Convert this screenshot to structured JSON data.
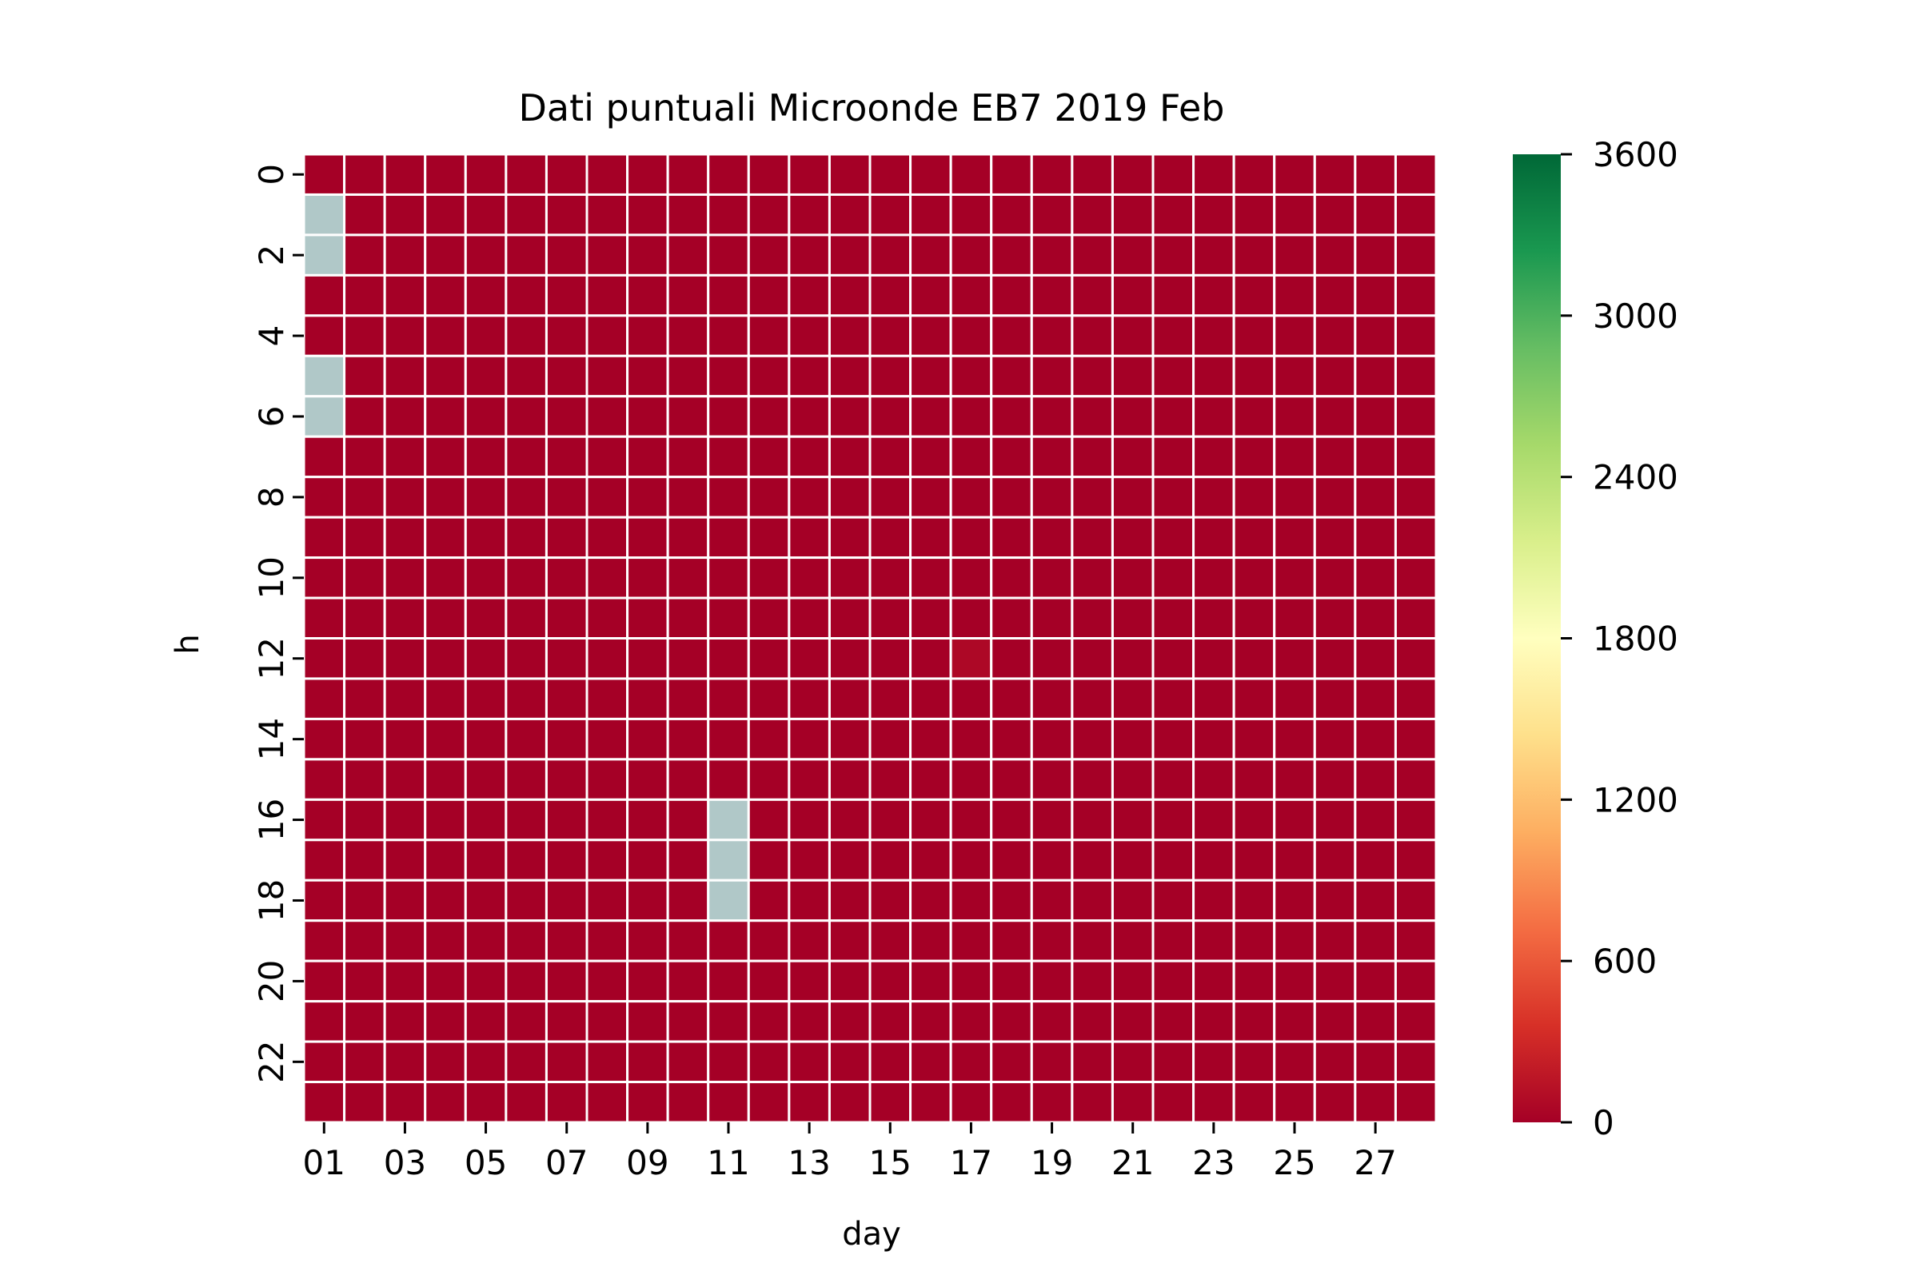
{
  "chart_data": {
    "type": "heatmap",
    "title": "Dati puntuali Microonde EB7 2019 Feb",
    "xlabel": "day",
    "ylabel": "h",
    "days": [
      "01",
      "02",
      "03",
      "04",
      "05",
      "06",
      "07",
      "08",
      "09",
      "10",
      "11",
      "12",
      "13",
      "14",
      "15",
      "16",
      "17",
      "18",
      "19",
      "20",
      "21",
      "22",
      "23",
      "24",
      "25",
      "26",
      "27",
      "28"
    ],
    "hours": [
      0,
      1,
      2,
      3,
      4,
      5,
      6,
      7,
      8,
      9,
      10,
      11,
      12,
      13,
      14,
      15,
      16,
      17,
      18,
      19,
      20,
      21,
      22,
      23
    ],
    "x_tick_labels": [
      "01",
      "03",
      "05",
      "07",
      "09",
      "11",
      "13",
      "15",
      "17",
      "19",
      "21",
      "23",
      "25",
      "27"
    ],
    "y_tick_labels": [
      "0",
      "2",
      "4",
      "6",
      "8",
      "10",
      "12",
      "14",
      "16",
      "18",
      "20",
      "22"
    ],
    "default_value": 0,
    "missing_cells": [
      {
        "day": "01",
        "hour": 1
      },
      {
        "day": "01",
        "hour": 2
      },
      {
        "day": "01",
        "hour": 5
      },
      {
        "day": "01",
        "hour": 6
      },
      {
        "day": "11",
        "hour": 16
      },
      {
        "day": "11",
        "hour": 17
      },
      {
        "day": "11",
        "hour": 18
      }
    ],
    "nonzero_cells": [
      {
        "day": "17",
        "hour": 12,
        "value": 60
      }
    ],
    "colorbar": {
      "min": 0,
      "max": 3600,
      "ticks": [
        0,
        600,
        1200,
        1800,
        2400,
        3000,
        3600
      ],
      "colormap": "RdYlGn"
    },
    "missing_color": "#b0c8c8",
    "cell_border_color": "#ffffff"
  }
}
